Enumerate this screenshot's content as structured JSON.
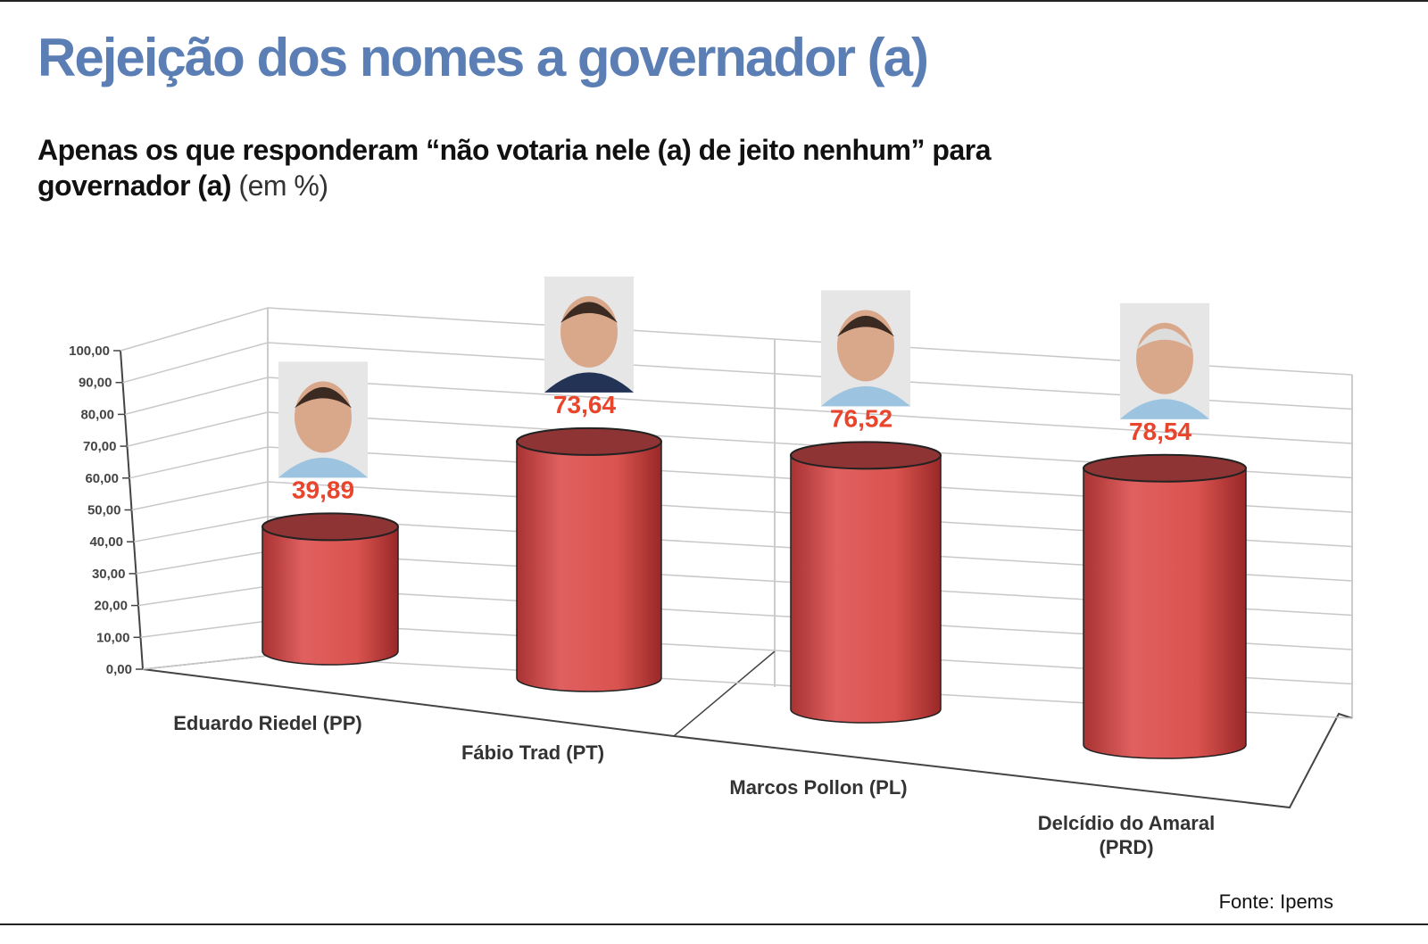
{
  "chart_data": {
    "type": "bar",
    "title": "Rejeição dos nomes a governador (a)",
    "subtitle": "Apenas os que responderam “não votaria nele (a) de jeito nenhum” para governador (a)",
    "subtitle_note": "(em %)",
    "source": "Fonte: Ipems",
    "categories": [
      "Eduardo Riedel (PP)",
      "Fábio Trad (PT)",
      "Marcos Pollon (PL)",
      "Delcídio do Amaral (PRD)"
    ],
    "values": [
      39.89,
      73.64,
      76.52,
      78.54
    ],
    "value_labels": [
      "39,89",
      "73,64",
      "76,52",
      "78,54"
    ],
    "color": "#d9534f",
    "label_color": "#e8452c",
    "ylim": [
      0,
      100
    ],
    "yticks": [
      {
        "value": 0,
        "label": "0,00"
      },
      {
        "value": 10,
        "label": "10,00"
      },
      {
        "value": 20,
        "label": "20,00"
      },
      {
        "value": 30,
        "label": "30,00"
      },
      {
        "value": 40,
        "label": "40,00"
      },
      {
        "value": 50,
        "label": "50,00"
      },
      {
        "value": 60,
        "label": "60,00"
      },
      {
        "value": 70,
        "label": "70,00"
      },
      {
        "value": 80,
        "label": "80,00"
      },
      {
        "value": 90,
        "label": "90,00"
      },
      {
        "value": 100,
        "label": "100,00"
      }
    ],
    "grid": true
  }
}
